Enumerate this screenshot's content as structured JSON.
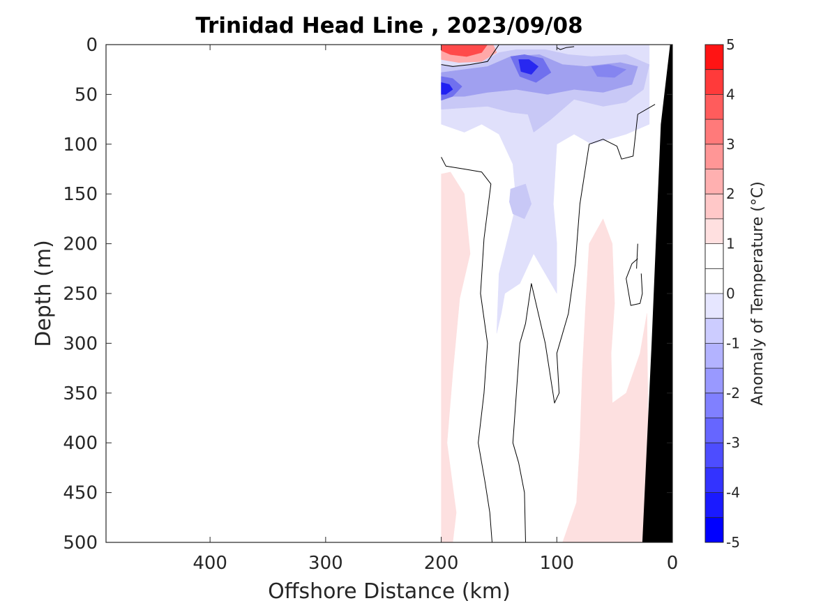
{
  "chart_data": {
    "type": "heatmap",
    "title": "Trinidad Head Line , 2023/09/08",
    "xlabel": "Offshore Distance (km)",
    "ylabel": "Depth (m)",
    "xlim": [
      490,
      0
    ],
    "ylim": [
      0,
      500
    ],
    "x_reversed": true,
    "y_reversed": true,
    "xticks": [
      400,
      300,
      200,
      100,
      0
    ],
    "yticks": [
      0,
      50,
      100,
      150,
      200,
      250,
      300,
      350,
      400,
      450,
      500
    ],
    "colorbar": {
      "label": "Anomaly of Temperature (°C)",
      "range": [
        -5,
        5
      ],
      "ticks": [
        5,
        4,
        3,
        2,
        1,
        0,
        -1,
        -2,
        -3,
        -4,
        -5
      ],
      "levels": [
        {
          "from": -5.0,
          "to": -4.5,
          "color": "#0000ff"
        },
        {
          "from": -4.5,
          "to": -4.0,
          "color": "#1a1aff"
        },
        {
          "from": -4.0,
          "to": -3.5,
          "color": "#3333ff"
        },
        {
          "from": -3.5,
          "to": -3.0,
          "color": "#4d4dff"
        },
        {
          "from": -3.0,
          "to": -2.5,
          "color": "#6666ff"
        },
        {
          "from": -2.5,
          "to": -2.0,
          "color": "#8080ff"
        },
        {
          "from": -2.0,
          "to": -1.5,
          "color": "#9999ff"
        },
        {
          "from": -1.5,
          "to": -1.0,
          "color": "#b3b3ff"
        },
        {
          "from": -1.0,
          "to": -0.5,
          "color": "#ccccff"
        },
        {
          "from": -0.5,
          "to": 0.0,
          "color": "#e6e6ff"
        },
        {
          "from": 0.0,
          "to": 0.5,
          "color": "#ffffff"
        },
        {
          "from": 0.5,
          "to": 1.0,
          "color": "#ffffff"
        },
        {
          "from": 1.0,
          "to": 1.5,
          "color": "#ffe0e0"
        },
        {
          "from": 1.5,
          "to": 2.0,
          "color": "#ffc8c8"
        },
        {
          "from": 2.0,
          "to": 2.5,
          "color": "#ffb0b0"
        },
        {
          "from": 2.5,
          "to": 3.0,
          "color": "#ff9696"
        },
        {
          "from": 3.0,
          "to": 3.5,
          "color": "#ff7a7a"
        },
        {
          "from": 3.5,
          "to": 4.0,
          "color": "#ff5c5c"
        },
        {
          "from": 4.0,
          "to": 4.5,
          "color": "#ff3a3a"
        },
        {
          "from": 4.5,
          "to": 5.0,
          "color": "#ff1414"
        }
      ]
    },
    "anomaly_regions": [
      {
        "name": "warm-deep-offshore",
        "anomaly": 0.7,
        "color": "#fde0e0",
        "points": [
          [
            200,
            130
          ],
          [
            192,
            128
          ],
          [
            180,
            150
          ],
          [
            175,
            210
          ],
          [
            184,
            255
          ],
          [
            190,
            330
          ],
          [
            195,
            400
          ],
          [
            187,
            470
          ],
          [
            190,
            500
          ],
          [
            200,
            500
          ]
        ]
      },
      {
        "name": "warm-deep-nearshore",
        "anomaly": 0.7,
        "color": "#fde0e0",
        "points": [
          [
            95,
            500
          ],
          [
            83,
            460
          ],
          [
            80,
            400
          ],
          [
            78,
            330
          ],
          [
            75,
            260
          ],
          [
            72,
            200
          ],
          [
            60,
            175
          ],
          [
            52,
            200
          ],
          [
            50,
            260
          ],
          [
            53,
            310
          ],
          [
            52,
            360
          ],
          [
            40,
            350
          ],
          [
            28,
            310
          ],
          [
            22,
            270
          ],
          [
            20,
            500
          ]
        ]
      },
      {
        "name": "cool-subsurface-plume",
        "anomaly": -0.7,
        "color": "#e0e0fb",
        "points": [
          [
            200,
            80
          ],
          [
            180,
            88
          ],
          [
            165,
            80
          ],
          [
            150,
            90
          ],
          [
            138,
            120
          ],
          [
            135,
            160
          ],
          [
            150,
            230
          ],
          [
            152,
            290
          ],
          [
            148,
            270
          ],
          [
            145,
            250
          ],
          [
            132,
            240
          ],
          [
            120,
            210
          ],
          [
            100,
            250
          ],
          [
            100,
            200
          ],
          [
            103,
            160
          ],
          [
            100,
            100
          ],
          [
            85,
            90
          ],
          [
            70,
            100
          ],
          [
            40,
            90
          ],
          [
            20,
            80
          ],
          [
            20,
            0
          ],
          [
            200,
            0
          ]
        ]
      },
      {
        "name": "cool-shallow-core",
        "anomaly": -1.3,
        "color": "#c8c8f6",
        "points": [
          [
            200,
            20
          ],
          [
            185,
            22
          ],
          [
            165,
            18
          ],
          [
            150,
            8
          ],
          [
            135,
            5
          ],
          [
            110,
            5
          ],
          [
            90,
            10
          ],
          [
            70,
            12
          ],
          [
            40,
            10
          ],
          [
            20,
            20
          ],
          [
            25,
            45
          ],
          [
            40,
            58
          ],
          [
            60,
            62
          ],
          [
            85,
            55
          ],
          [
            105,
            75
          ],
          [
            120,
            88
          ],
          [
            125,
            70
          ],
          [
            140,
            68
          ],
          [
            160,
            62
          ],
          [
            200,
            65
          ]
        ]
      },
      {
        "name": "cool-midcore-patch",
        "anomaly": -1.3,
        "color": "#c8c8f6",
        "points": [
          [
            140,
            145
          ],
          [
            127,
            140
          ],
          [
            122,
            160
          ],
          [
            128,
            175
          ],
          [
            138,
            170
          ],
          [
            141,
            158
          ]
        ]
      },
      {
        "name": "cool-surface-band",
        "anomaly": -2.3,
        "color": "#a0a0f0",
        "points": [
          [
            200,
            28
          ],
          [
            180,
            25
          ],
          [
            160,
            22
          ],
          [
            140,
            12
          ],
          [
            115,
            10
          ],
          [
            95,
            20
          ],
          [
            75,
            22
          ],
          [
            45,
            18
          ],
          [
            30,
            22
          ],
          [
            35,
            40
          ],
          [
            60,
            48
          ],
          [
            85,
            45
          ],
          [
            108,
            50
          ],
          [
            135,
            45
          ],
          [
            160,
            48
          ],
          [
            180,
            52
          ],
          [
            200,
            52
          ]
        ]
      },
      {
        "name": "cold-core-offshore",
        "anomaly": -3.3,
        "color": "#7070ee",
        "points": [
          [
            200,
            32
          ],
          [
            190,
            34
          ],
          [
            182,
            42
          ],
          [
            190,
            52
          ],
          [
            200,
            56
          ]
        ]
      },
      {
        "name": "cold-core-central",
        "anomaly": -3.3,
        "color": "#7070ee",
        "points": [
          [
            140,
            12
          ],
          [
            128,
            10
          ],
          [
            112,
            14
          ],
          [
            105,
            28
          ],
          [
            118,
            38
          ],
          [
            132,
            32
          ]
        ]
      },
      {
        "name": "cold-core-nearshore",
        "anomaly": -2.8,
        "color": "#8585f0",
        "points": [
          [
            70,
            22
          ],
          [
            55,
            20
          ],
          [
            40,
            25
          ],
          [
            50,
            33
          ],
          [
            65,
            32
          ]
        ]
      },
      {
        "name": "coldest-offshore",
        "anomaly": -4.5,
        "color": "#2020f2",
        "points": [
          [
            200,
            38
          ],
          [
            193,
            40
          ],
          [
            190,
            45
          ],
          [
            196,
            50
          ],
          [
            200,
            50
          ]
        ]
      },
      {
        "name": "coldest-central",
        "anomaly": -4.3,
        "color": "#2828f0",
        "points": [
          [
            133,
            15
          ],
          [
            124,
            15
          ],
          [
            116,
            22
          ],
          [
            122,
            30
          ],
          [
            131,
            27
          ]
        ]
      },
      {
        "name": "warm-surface-patch",
        "anomaly": 2.5,
        "color": "#ffa8a8",
        "points": [
          [
            200,
            0
          ],
          [
            155,
            0
          ],
          [
            152,
            8
          ],
          [
            165,
            17
          ],
          [
            185,
            18
          ],
          [
            200,
            15
          ]
        ]
      },
      {
        "name": "warm-surface-core",
        "anomaly": 4.0,
        "color": "#ff4a4a",
        "points": [
          [
            200,
            0
          ],
          [
            160,
            0
          ],
          [
            165,
            8
          ],
          [
            178,
            12
          ],
          [
            192,
            10
          ],
          [
            200,
            6
          ]
        ]
      }
    ],
    "contours": [
      {
        "level": 0,
        "points": [
          [
            200,
            20
          ],
          [
            190,
            22
          ],
          [
            175,
            20
          ],
          [
            160,
            17
          ],
          [
            150,
            0
          ]
        ]
      },
      {
        "level": 0,
        "points": [
          [
            100,
            3
          ],
          [
            97,
            5
          ],
          [
            92,
            3
          ],
          [
            85,
            2
          ]
        ]
      },
      {
        "level": 0,
        "points": [
          [
            200,
            113
          ],
          [
            196,
            122
          ],
          [
            180,
            125
          ],
          [
            165,
            128
          ],
          [
            157,
            140
          ],
          [
            163,
            195
          ],
          [
            166,
            250
          ],
          [
            160,
            300
          ],
          [
            163,
            350
          ],
          [
            168,
            400
          ],
          [
            162,
            440
          ],
          [
            158,
            470
          ],
          [
            156,
            500
          ]
        ]
      },
      {
        "level": 0,
        "points": [
          [
            127,
            500
          ],
          [
            128,
            450
          ],
          [
            133,
            420
          ],
          [
            138,
            400
          ],
          [
            135,
            350
          ],
          [
            132,
            300
          ],
          [
            127,
            280
          ],
          [
            122,
            240
          ],
          [
            110,
            300
          ],
          [
            102,
            360
          ],
          [
            98,
            350
          ],
          [
            100,
            310
          ],
          [
            90,
            270
          ],
          [
            84,
            220
          ],
          [
            80,
            160
          ],
          [
            72,
            100
          ],
          [
            60,
            95
          ],
          [
            48,
            102
          ],
          [
            44,
            115
          ],
          [
            34,
            112
          ],
          [
            30,
            70
          ],
          [
            15,
            60
          ]
        ]
      },
      {
        "level": 0,
        "points": [
          [
            30,
            215
          ],
          [
            35,
            220
          ],
          [
            40,
            235
          ],
          [
            36,
            262
          ],
          [
            28,
            260
          ],
          [
            26,
            250
          ],
          [
            27,
            230
          ]
        ]
      },
      {
        "level": 0,
        "points": [
          [
            30,
            200
          ],
          [
            31,
            225
          ]
        ]
      }
    ],
    "bathymetry": {
      "name": "seafloor",
      "color": "#000000",
      "points": [
        [
          0,
          0
        ],
        [
          2,
          0
        ],
        [
          10,
          80
        ],
        [
          18,
          300
        ],
        [
          26,
          500
        ],
        [
          0,
          500
        ]
      ]
    },
    "no_data_region": {
      "x_from": 490,
      "x_to": 200
    }
  }
}
